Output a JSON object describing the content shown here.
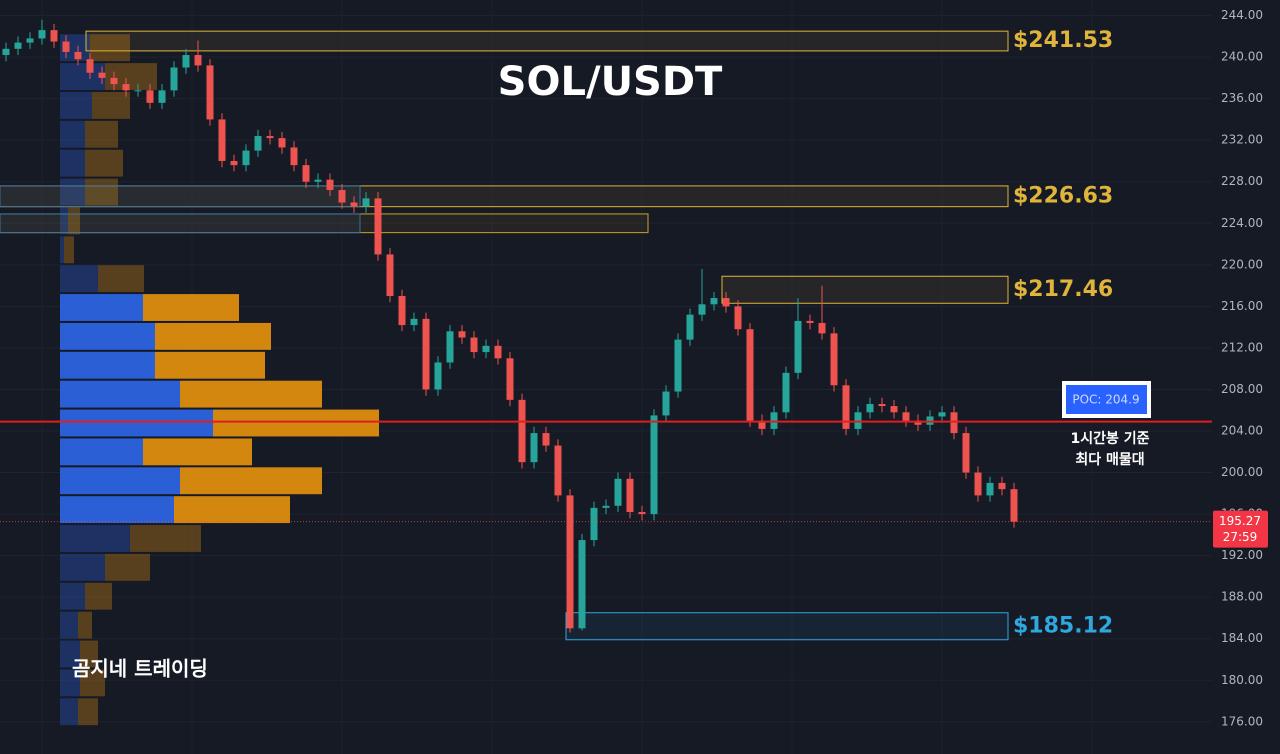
{
  "chart_data": {
    "type": "candlestick",
    "title": "SOL/USDT",
    "watermark": "곰지네 트레이딩",
    "ylim": [
      172.9,
      245.5
    ],
    "yticks": [
      {
        "value": 244,
        "label": "244.00"
      },
      {
        "value": 240,
        "label": "240.00"
      },
      {
        "value": 236,
        "label": "236.00"
      },
      {
        "value": 232,
        "label": "232.00"
      },
      {
        "value": 228,
        "label": "228.00"
      },
      {
        "value": 224,
        "label": "224.00"
      },
      {
        "value": 220,
        "label": "220.00"
      },
      {
        "value": 216,
        "label": "216.00"
      },
      {
        "value": 212,
        "label": "212.00"
      },
      {
        "value": 208,
        "label": "208.00"
      },
      {
        "value": 204,
        "label": "204.00"
      },
      {
        "value": 200,
        "label": "200.00"
      },
      {
        "value": 196,
        "label": "196.00"
      },
      {
        "value": 192,
        "label": "192.00"
      },
      {
        "value": 188,
        "label": "188.00"
      },
      {
        "value": 184,
        "label": "184.00"
      },
      {
        "value": 180,
        "label": "180.00"
      },
      {
        "value": 176,
        "label": "176.00"
      }
    ],
    "up_color": "#26a69a",
    "down_color": "#ef5350",
    "open": [
      240.2,
      240.8,
      241.4,
      241.8,
      242.6,
      241.5,
      240.5,
      239.8,
      238.5,
      238,
      237.4,
      236.8,
      236.8,
      235.6,
      236.8,
      239,
      240.2,
      239.2,
      234,
      230,
      229.6,
      231,
      232.4,
      232.2,
      231.3,
      229.6,
      228,
      228.2,
      227.2,
      226,
      225.6,
      226.4,
      221,
      217,
      214.2,
      214.8,
      208,
      210.6,
      213.6,
      213,
      211.6,
      212.2,
      211,
      207,
      201,
      203.8,
      202.6,
      197.8,
      185,
      193.5,
      196.6,
      196.8,
      199.4,
      196.2,
      196,
      205.5,
      207.8,
      212.8,
      215.2,
      216.2,
      216.8,
      216,
      213.8,
      205,
      204.2,
      205.8,
      209.6,
      214.6,
      214.4,
      213.4,
      208.4,
      204.2,
      205.8,
      206.6,
      206.4,
      205.8,
      205,
      204.6,
      205.4,
      205.8,
      203.8,
      200,
      197.8,
      199,
      198.4
    ],
    "high": [
      241.4,
      242,
      242.4,
      243.6,
      243.2,
      242.1,
      241.1,
      240.4,
      239.1,
      238.6,
      238,
      237.4,
      237.4,
      237.4,
      239.6,
      240.8,
      241.6,
      239.8,
      234.6,
      230.6,
      231.6,
      233,
      233,
      232.8,
      231.9,
      230.2,
      228.8,
      228.8,
      227.8,
      226.6,
      227,
      227,
      221.6,
      217.6,
      215.4,
      215.4,
      211.2,
      214.2,
      214.2,
      213.6,
      212.8,
      212.8,
      211.6,
      207.6,
      204.4,
      204.4,
      203.2,
      198.4,
      194.1,
      197.2,
      197.4,
      200,
      200,
      196.8,
      206.1,
      208.4,
      213.4,
      215.8,
      219.6,
      217.4,
      217.4,
      216.6,
      214.4,
      205.6,
      206.4,
      210.2,
      216.8,
      215.2,
      218,
      214,
      209,
      206.4,
      207.2,
      207.2,
      207,
      206.4,
      205.6,
      206,
      206.4,
      206.4,
      204.4,
      200.6,
      199.6,
      199.6,
      199
    ],
    "low": [
      239.6,
      240.2,
      240.8,
      241.2,
      240.9,
      239.9,
      239.2,
      237.9,
      237.4,
      236.8,
      236.2,
      236.2,
      235,
      235,
      236.2,
      238.4,
      238.6,
      233.4,
      229.4,
      229,
      229,
      230.4,
      231.6,
      230.7,
      229,
      227.4,
      227.4,
      226.6,
      225.4,
      225,
      225,
      220.4,
      216.4,
      213.6,
      213.6,
      207.4,
      207.4,
      210,
      212.4,
      211,
      211,
      210.4,
      206.4,
      200.4,
      200.4,
      202,
      197.2,
      184.6,
      184.8,
      192.9,
      196,
      196.2,
      195.6,
      195.4,
      195.4,
      204.9,
      207.2,
      212.2,
      214.6,
      215.6,
      215.4,
      213.2,
      204.4,
      203.6,
      203.6,
      205.2,
      209,
      213.8,
      212.8,
      207.8,
      203.6,
      203.6,
      205.2,
      205.8,
      205.2,
      204.4,
      204,
      204,
      204.8,
      203.2,
      199.4,
      197.2,
      197.2,
      197.8,
      194.7
    ],
    "close": [
      240.8,
      241.4,
      241.8,
      242.6,
      241.5,
      240.5,
      239.8,
      238.5,
      238,
      237.4,
      236.8,
      236.8,
      235.6,
      236.8,
      239,
      240.2,
      239.2,
      234,
      230,
      229.6,
      231,
      232.4,
      232.2,
      231.3,
      229.6,
      228,
      228.2,
      227.2,
      226,
      225.6,
      226.4,
      221,
      217,
      214.2,
      214.8,
      208,
      210.6,
      213.6,
      213,
      211.6,
      212.2,
      211,
      207,
      201,
      203.8,
      202.6,
      197.8,
      185,
      193.5,
      196.6,
      196.8,
      199.4,
      196.2,
      196,
      205.5,
      207.8,
      212.8,
      215.2,
      216.2,
      216.8,
      216,
      213.8,
      205,
      204.2,
      205.8,
      209.6,
      214.6,
      214.4,
      213.4,
      208.4,
      204.2,
      205.8,
      206.6,
      206.4,
      205.8,
      205,
      204.6,
      205.4,
      205.8,
      203.8,
      200,
      197.8,
      199,
      198.4,
      195.27
    ],
    "volume_profile": {
      "bins": [
        242.3,
        239.52,
        236.74,
        233.96,
        231.18,
        228.4,
        225.62,
        222.84,
        220.06,
        217.28,
        214.5,
        211.72,
        208.94,
        206.16,
        203.38,
        200.6,
        197.82,
        195.04,
        192.26,
        189.48,
        186.7,
        183.92,
        181.14,
        178.36,
        175.58
      ],
      "up": [
        30,
        45,
        32,
        25,
        25,
        25,
        8,
        4,
        38,
        83,
        95,
        95,
        120,
        153,
        83,
        120,
        114,
        70,
        45,
        25,
        18,
        20,
        20,
        18
      ],
      "down": [
        40,
        52,
        38,
        33,
        38,
        33,
        12,
        10,
        46,
        96,
        116,
        110,
        142,
        166,
        109,
        142,
        116,
        71,
        45,
        27,
        14,
        18,
        25,
        20
      ],
      "up_color": "#2a5fd6",
      "down_color": "#d4870f",
      "value_area": [
        195.04,
        217.28
      ]
    },
    "zones": [
      {
        "top": 242.5,
        "bottom": 240.6,
        "from": 7,
        "to": 84,
        "label": "$241.53",
        "color": "#e0b43a"
      },
      {
        "top": 227.6,
        "bottom": 225.6,
        "from": 0,
        "to": 84,
        "label": "$226.63",
        "color": "#e0b43a"
      },
      {
        "top": 224.9,
        "bottom": 223.1,
        "from": 0,
        "to": 54,
        "color": "#c9a227"
      },
      {
        "top": 227.6,
        "bottom": 225.6,
        "from": 0,
        "to": 30,
        "color": "#3d6e9e"
      },
      {
        "top": 224.9,
        "bottom": 223.1,
        "from": 0,
        "to": 30,
        "color": "#3d6e9e"
      },
      {
        "top": 218.9,
        "bottom": 216.3,
        "from": 60,
        "to": 84,
        "label": "$217.46",
        "color": "#e0b43a"
      },
      {
        "top": 186.5,
        "bottom": 183.9,
        "from": 47,
        "to": 84,
        "label": "$185.12",
        "color": "#2fa8e0"
      }
    ],
    "poc": {
      "value": 204.9,
      "label": "POC: 204.9",
      "note": [
        "1시간봉 기준",
        "최다 매물대"
      ],
      "color": "#e01e1e"
    },
    "last": {
      "value": 195.27,
      "countdown": "27:59"
    }
  }
}
